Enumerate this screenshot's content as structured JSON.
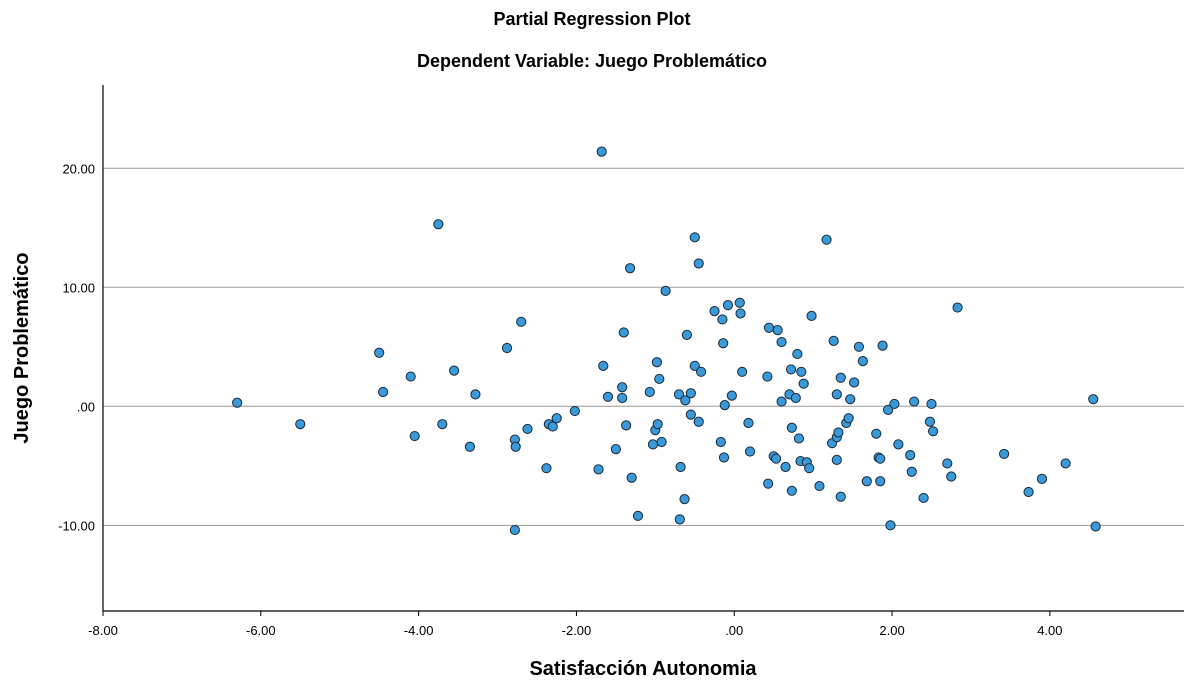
{
  "chart_data": {
    "type": "scatter",
    "title": "Partial Regression Plot",
    "subtitle": "Dependent Variable: Juego Problemático",
    "xlabel": "Satisfacción Autonomia",
    "ylabel": "Juego Problemático",
    "xlim": [
      -8,
      5.7
    ],
    "ylim": [
      -17.2,
      27
    ],
    "xticks": [
      -8,
      -6,
      -4,
      -2,
      0,
      2,
      4
    ],
    "xtick_labels": [
      "-8.00",
      "-6.00",
      "-4.00",
      "-2.00",
      ".00",
      "2.00",
      "4.00"
    ],
    "yticks": [
      -10,
      0,
      10,
      20
    ],
    "ytick_labels": [
      "-10.00",
      ".00",
      "10.00",
      "20.00"
    ],
    "grid": "horizontal",
    "point_color": "#3a9ad9",
    "point_edge_color": "#1a2a3a",
    "points": [
      [
        -6.3,
        0.3
      ],
      [
        -5.5,
        -1.5
      ],
      [
        -4.5,
        4.5
      ],
      [
        -4.45,
        1.2
      ],
      [
        -4.1,
        2.5
      ],
      [
        -4.05,
        -2.5
      ],
      [
        -3.75,
        15.3
      ],
      [
        -3.7,
        -1.5
      ],
      [
        -3.55,
        3.0
      ],
      [
        -3.35,
        -3.4
      ],
      [
        -3.28,
        1.0
      ],
      [
        -2.88,
        4.9
      ],
      [
        -2.78,
        -2.8
      ],
      [
        -2.77,
        -3.4
      ],
      [
        -2.78,
        -10.4
      ],
      [
        -2.7,
        7.1
      ],
      [
        -2.62,
        -1.9
      ],
      [
        -2.38,
        -5.2
      ],
      [
        -2.35,
        -1.5
      ],
      [
        -2.3,
        -1.7
      ],
      [
        -2.25,
        -1.0
      ],
      [
        -2.02,
        -0.4
      ],
      [
        -1.72,
        -5.3
      ],
      [
        -1.68,
        21.4
      ],
      [
        -1.66,
        3.4
      ],
      [
        -1.6,
        0.8
      ],
      [
        -1.5,
        -3.6
      ],
      [
        -1.42,
        1.6
      ],
      [
        -1.42,
        0.7
      ],
      [
        -1.4,
        6.2
      ],
      [
        -1.37,
        -1.6
      ],
      [
        -1.32,
        11.6
      ],
      [
        -1.3,
        -6.0
      ],
      [
        -1.22,
        -9.2
      ],
      [
        -1.07,
        1.2
      ],
      [
        -1.03,
        -3.2
      ],
      [
        -1.0,
        -2.0
      ],
      [
        -0.98,
        3.7
      ],
      [
        -0.97,
        -1.5
      ],
      [
        -0.95,
        2.3
      ],
      [
        -0.92,
        -3.0
      ],
      [
        -0.87,
        9.7
      ],
      [
        -0.7,
        1.0
      ],
      [
        -0.68,
        -5.1
      ],
      [
        -0.69,
        -9.5
      ],
      [
        -0.63,
        -7.8
      ],
      [
        -0.62,
        0.5
      ],
      [
        -0.6,
        6.0
      ],
      [
        -0.55,
        1.1
      ],
      [
        -0.55,
        -0.7
      ],
      [
        -0.5,
        14.2
      ],
      [
        -0.5,
        3.4
      ],
      [
        -0.45,
        -1.3
      ],
      [
        -0.45,
        12.0
      ],
      [
        -0.42,
        2.9
      ],
      [
        -0.25,
        8.0
      ],
      [
        -0.17,
        -3.0
      ],
      [
        -0.15,
        7.3
      ],
      [
        -0.14,
        5.3
      ],
      [
        -0.13,
        -4.3
      ],
      [
        -0.12,
        0.1
      ],
      [
        -0.08,
        8.5
      ],
      [
        -0.03,
        0.9
      ],
      [
        0.07,
        8.7
      ],
      [
        0.08,
        7.8
      ],
      [
        0.1,
        2.9
      ],
      [
        0.18,
        -1.4
      ],
      [
        0.2,
        -3.8
      ],
      [
        0.42,
        2.5
      ],
      [
        0.43,
        -6.5
      ],
      [
        0.44,
        6.6
      ],
      [
        0.5,
        -4.2
      ],
      [
        0.53,
        -4.4
      ],
      [
        0.55,
        6.4
      ],
      [
        0.6,
        0.4
      ],
      [
        0.6,
        5.4
      ],
      [
        0.65,
        -5.1
      ],
      [
        0.7,
        1.0
      ],
      [
        0.72,
        3.1
      ],
      [
        0.73,
        -1.8
      ],
      [
        0.73,
        -7.1
      ],
      [
        0.78,
        0.7
      ],
      [
        0.8,
        4.4
      ],
      [
        0.82,
        -2.7
      ],
      [
        0.84,
        -4.6
      ],
      [
        0.85,
        2.9
      ],
      [
        0.88,
        1.9
      ],
      [
        0.92,
        -4.7
      ],
      [
        0.95,
        -5.2
      ],
      [
        0.98,
        7.6
      ],
      [
        1.08,
        -6.7
      ],
      [
        1.17,
        14.0
      ],
      [
        1.24,
        -3.1
      ],
      [
        1.26,
        5.5
      ],
      [
        1.3,
        -2.6
      ],
      [
        1.3,
        1.0
      ],
      [
        1.3,
        -4.5
      ],
      [
        1.32,
        -2.2
      ],
      [
        1.35,
        -7.6
      ],
      [
        1.35,
        2.4
      ],
      [
        1.42,
        -1.4
      ],
      [
        1.45,
        -1.0
      ],
      [
        1.47,
        0.6
      ],
      [
        1.52,
        2.0
      ],
      [
        1.58,
        5.0
      ],
      [
        1.63,
        3.8
      ],
      [
        1.68,
        -6.3
      ],
      [
        1.8,
        -2.3
      ],
      [
        1.83,
        -4.3
      ],
      [
        1.85,
        -4.4
      ],
      [
        1.88,
        5.1
      ],
      [
        1.85,
        -6.3
      ],
      [
        1.95,
        -0.3
      ],
      [
        1.98,
        -10.0
      ],
      [
        2.03,
        0.2
      ],
      [
        2.08,
        -3.2
      ],
      [
        2.23,
        -4.1
      ],
      [
        2.25,
        -5.5
      ],
      [
        2.28,
        0.4
      ],
      [
        2.4,
        -7.7
      ],
      [
        2.48,
        -1.3
      ],
      [
        2.5,
        0.2
      ],
      [
        2.52,
        -2.1
      ],
      [
        2.7,
        -4.8
      ],
      [
        2.75,
        -5.9
      ],
      [
        2.83,
        8.3
      ],
      [
        3.42,
        -4.0
      ],
      [
        3.73,
        -7.2
      ],
      [
        3.9,
        -6.1
      ],
      [
        4.2,
        -4.8
      ],
      [
        4.55,
        0.6
      ],
      [
        4.58,
        -10.1
      ]
    ]
  }
}
